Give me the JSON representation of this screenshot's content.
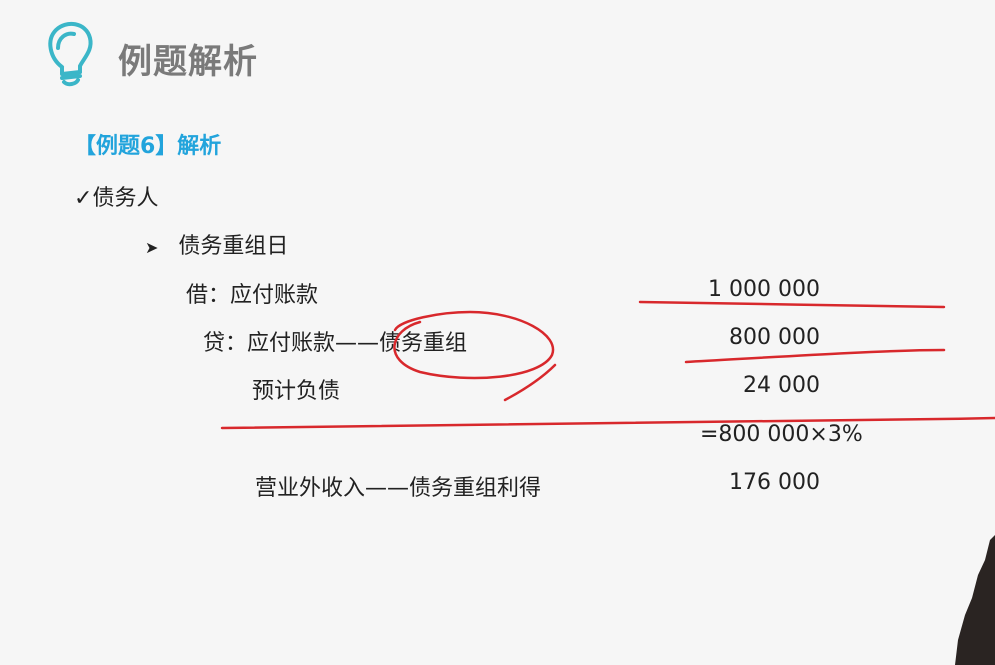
{
  "slide": {
    "title": "例题解析",
    "title_icon": "lightbulb-icon",
    "accent_color": "#22a4dc",
    "subtitle": "【例题6】解析",
    "party_marker": "✓",
    "party": "债务人",
    "section_marker": "➤",
    "section": "债务重组日",
    "entries": [
      {
        "label": "借：应付账款",
        "amount": "1 000 000"
      },
      {
        "label": "贷：应付账款——债务重组",
        "amount": "800 000"
      },
      {
        "label": "预计负债",
        "amount": "24 000"
      },
      {
        "label": "",
        "amount": "=800 000×3%"
      },
      {
        "label": "营业外收入——债务重组利得",
        "amount": "176 000"
      }
    ],
    "annotation_color": "#d8282c"
  }
}
